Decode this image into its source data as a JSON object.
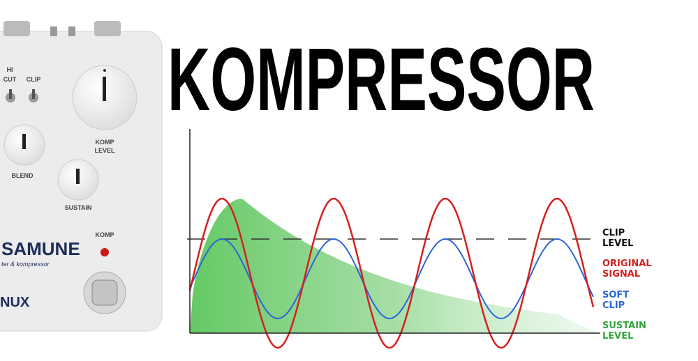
{
  "title": "KOMPRESSOR",
  "pedal": {
    "hi_cut": [
      "HI",
      "CUT"
    ],
    "clip": "CLIP",
    "komp_level": [
      "KOMP",
      "LEVEL"
    ],
    "blend": "BLEND",
    "sustain": "SUSTAIN",
    "komp": "KOMP",
    "name": "SAMUNE",
    "subtitle": "ter & kompressor",
    "brand": "NUX"
  },
  "diagram": {
    "legend": [
      {
        "lines": [
          "CLIP",
          "LEVEL"
        ],
        "color": "#111111"
      },
      {
        "lines": [
          "ORIGINAL",
          "SIGNAL"
        ],
        "color": "#d42020"
      },
      {
        "lines": [
          "SOFT",
          "CLIP"
        ],
        "color": "#2a66d8"
      },
      {
        "lines": [
          "SUSTAIN",
          "LEVEL"
        ],
        "color": "#35a83a"
      }
    ]
  }
}
